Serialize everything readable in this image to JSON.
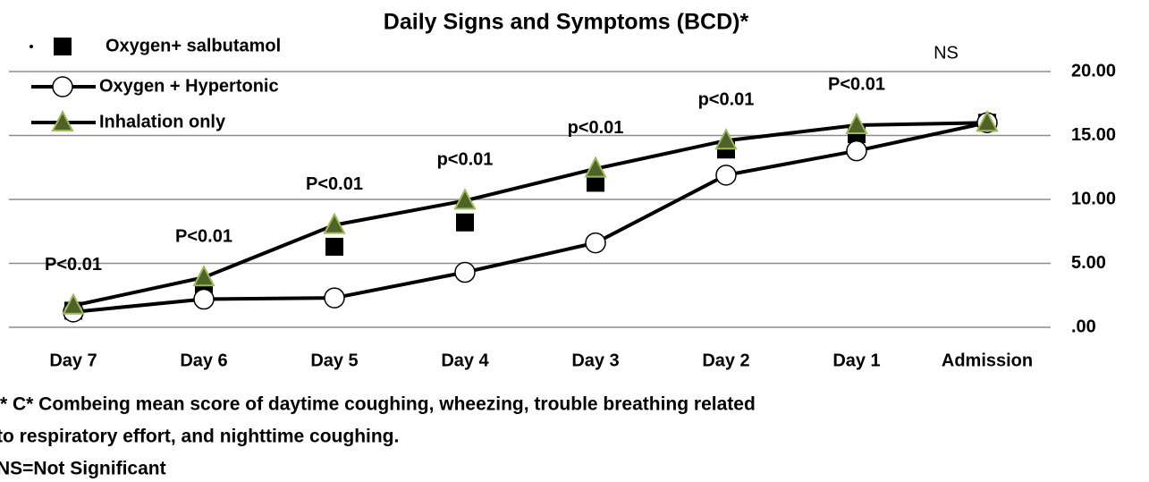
{
  "chart_data": {
    "type": "line",
    "title": "Daily Signs and Symptoms (BCD)*",
    "categories": [
      "Day 7",
      "Day 6",
      "Day 5",
      "Day 4",
      "Day 3",
      "Day 2",
      "Day 1",
      "Admission"
    ],
    "series": [
      {
        "name": "Oxygen+ salbutamol",
        "color": "#000000",
        "marker": "square",
        "marker_color": "#000000",
        "line": false,
        "values": [
          1.3,
          2.9,
          6.3,
          8.2,
          11.3,
          13.9,
          15.1,
          16.0
        ]
      },
      {
        "name": "Oxygen + Hypertonic",
        "color": "#000000",
        "marker": "circle",
        "marker_color": "#ffffff",
        "line": true,
        "values": [
          1.2,
          2.2,
          2.3,
          4.3,
          6.6,
          11.9,
          13.8,
          16.0
        ]
      },
      {
        "name": "Inhalation only",
        "color": "#000000",
        "marker": "triangle",
        "marker_color": "#4f6228",
        "line": true,
        "values": [
          1.7,
          3.9,
          8.0,
          9.9,
          12.4,
          14.6,
          15.8,
          16.0
        ]
      }
    ],
    "annotations": [
      "P<0.01",
      "P<0.01",
      "P<0.01",
      "p<0.01",
      "p<0.01",
      "p<0.01",
      "P<0.01",
      "NS"
    ],
    "ylim": [
      0,
      20
    ],
    "yticks": [
      {
        "value": 0,
        "label": ".00"
      },
      {
        "value": 5,
        "label": "5.00"
      },
      {
        "value": 10,
        "label": "10.00"
      },
      {
        "value": 15,
        "label": "15.00"
      },
      {
        "value": 20,
        "label": "20.00"
      }
    ],
    "grid": true,
    "legend": "top-left",
    "notes": [
      "* C* Combeing  mean score of daytime coughing, wheezing, trouble breathing related",
      "to respiratory effort, and nighttime coughing.",
      "NS=Not Significant"
    ]
  }
}
